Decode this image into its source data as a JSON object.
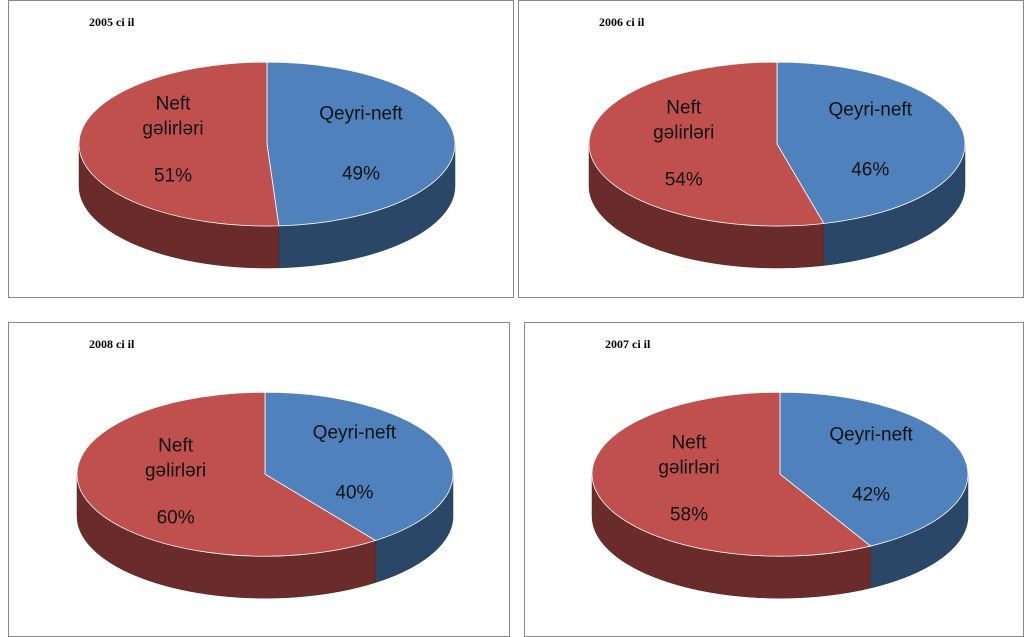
{
  "chart_data": [
    {
      "type": "pie",
      "title": "2005 ci il",
      "categories": [
        "Qeyri-neft",
        "Neft gəlirləri"
      ],
      "values": [
        49,
        51
      ],
      "value_labels": [
        "49%",
        "51%"
      ],
      "colors": [
        "#4f81bd",
        "#c0504d"
      ]
    },
    {
      "type": "pie",
      "title": "2006 ci il",
      "categories": [
        "Qeyri-neft",
        "Neft gəlirləri"
      ],
      "values": [
        46,
        54
      ],
      "value_labels": [
        "46%",
        "54%"
      ],
      "colors": [
        "#4f81bd",
        "#c0504d"
      ]
    },
    {
      "type": "pie",
      "title": "2008 ci il",
      "categories": [
        "Qeyri-neft",
        "Neft gəlirləri"
      ],
      "values": [
        40,
        60
      ],
      "value_labels": [
        "40%",
        "60%"
      ],
      "colors": [
        "#4f81bd",
        "#c0504d"
      ]
    },
    {
      "type": "pie",
      "title": "2007 ci il",
      "categories": [
        "Qeyri-neft",
        "Neft gəlirləri"
      ],
      "values": [
        42,
        58
      ],
      "value_labels": [
        "42%",
        "58%"
      ],
      "colors": [
        "#4f81bd",
        "#c0504d"
      ]
    }
  ]
}
